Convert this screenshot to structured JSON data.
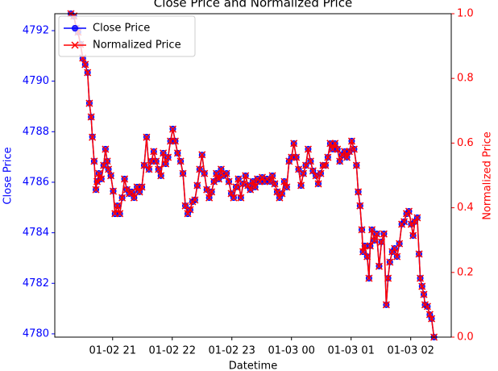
{
  "chart_data": {
    "type": "line",
    "title": "Close Price and Normalized Price",
    "x_label": "Datetime",
    "y_label": "Close Price",
    "y2_label": "Normalized Price",
    "xlim": [
      20.03,
      26.68
    ],
    "xticks": [
      {
        "value": 21,
        "label": "01-02 21"
      },
      {
        "value": 22,
        "label": "01-02 22"
      },
      {
        "value": 23,
        "label": "01-02 23"
      },
      {
        "value": 24,
        "label": "01-03 00"
      },
      {
        "value": 25,
        "label": "01-03 01"
      },
      {
        "value": 26,
        "label": "01-03 02"
      }
    ],
    "ylim": [
      4779.87,
      4792.67
    ],
    "yticks": [
      4780,
      4782,
      4784,
      4786,
      4788,
      4790,
      4792
    ],
    "y2lim": [
      0,
      1
    ],
    "y2ticks": [
      {
        "value": 0,
        "label": "0.0"
      },
      0.2,
      0.4,
      0.6,
      0.8,
      {
        "value": 1,
        "label": "1.0"
      }
    ],
    "legend": "upper left",
    "x": [
      20.3,
      20.35,
      20.39,
      20.42,
      20.46,
      20.5,
      20.54,
      20.58,
      20.61,
      20.64,
      20.66,
      20.69,
      20.72,
      20.74,
      20.77,
      20.81,
      20.85,
      20.88,
      20.91,
      20.93,
      20.97,
      21.01,
      21.04,
      21.08,
      21.12,
      21.16,
      21.2,
      21.24,
      21.28,
      21.32,
      21.36,
      21.41,
      21.45,
      21.49,
      21.53,
      21.57,
      21.61,
      21.65,
      21.69,
      21.73,
      21.77,
      21.81,
      21.85,
      21.89,
      21.93,
      21.97,
      22.01,
      22.05,
      22.09,
      22.14,
      22.18,
      22.22,
      22.26,
      22.3,
      22.34,
      22.38,
      22.42,
      22.46,
      22.5,
      22.54,
      22.58,
      22.62,
      22.66,
      22.7,
      22.74,
      22.78,
      22.82,
      22.86,
      22.91,
      22.95,
      22.99,
      23.03,
      23.07,
      23.11,
      23.15,
      23.19,
      23.23,
      23.27,
      23.31,
      23.35,
      23.39,
      23.43,
      23.47,
      23.51,
      23.55,
      23.59,
      23.64,
      23.68,
      23.72,
      23.76,
      23.8,
      23.84,
      23.88,
      23.92,
      23.96,
      24.0,
      24.04,
      24.08,
      24.12,
      24.16,
      24.2,
      24.24,
      24.28,
      24.32,
      24.36,
      24.41,
      24.45,
      24.49,
      24.53,
      24.57,
      24.61,
      24.65,
      24.69,
      24.73,
      24.77,
      24.81,
      24.85,
      24.89,
      24.93,
      24.97,
      25.01,
      25.05,
      25.09,
      25.12,
      25.15,
      25.18,
      25.2,
      25.23,
      25.27,
      25.3,
      25.32,
      25.35,
      25.39,
      25.43,
      25.47,
      25.51,
      25.55,
      25.59,
      25.62,
      25.65,
      25.69,
      25.73,
      25.77,
      25.81,
      25.85,
      25.89,
      25.93,
      25.97,
      26.01,
      26.04,
      26.07,
      26.11,
      26.14,
      26.16,
      26.19,
      26.22,
      26.24,
      26.28,
      26.32,
      26.35,
      26.39
    ],
    "series": [
      {
        "name": "Close Price",
        "color": "#0000ff",
        "marker": "o",
        "axis": "y",
        "values": [
          4792.67,
          4792.57,
          4792.1,
          4791.94,
          4791.46,
          4790.9,
          4790.66,
          4790.34,
          4789.13,
          4788.58,
          4787.8,
          4786.83,
          4785.71,
          4786.03,
          4786.35,
          4786.13,
          4786.67,
          4787.31,
          4786.83,
          4786.51,
          4786.26,
          4785.65,
          4784.75,
          4785.07,
          4784.75,
          4785.39,
          4786.13,
          4785.71,
          4785.55,
          4785.62,
          4785.39,
          4785.81,
          4785.62,
          4785.81,
          4786.67,
          4787.79,
          4786.51,
          4786.83,
          4787.21,
          4786.83,
          4786.51,
          4786.26,
          4787.15,
          4786.73,
          4786.99,
          4787.63,
          4788.11,
          4787.63,
          4787.15,
          4786.83,
          4786.35,
          4785.07,
          4784.75,
          4784.91,
          4785.23,
          4785.3,
          4785.87,
          4786.51,
          4787.08,
          4786.35,
          4785.71,
          4785.39,
          4785.62,
          4786.03,
          4786.35,
          4786.13,
          4786.51,
          4786.26,
          4786.35,
          4786.03,
          4785.55,
          4785.39,
          4785.81,
          4786.13,
          4785.39,
          4785.94,
          4786.26,
          4785.87,
          4785.71,
          4786.03,
          4785.81,
          4786.13,
          4786.03,
          4786.19,
          4786.03,
          4786.13,
          4786.03,
          4786.26,
          4785.94,
          4785.62,
          4785.39,
          4785.55,
          4786.03,
          4785.81,
          4786.83,
          4786.99,
          4787.53,
          4786.99,
          4786.51,
          4785.87,
          4786.35,
          4786.67,
          4787.31,
          4786.83,
          4786.45,
          4786.26,
          4785.94,
          4786.35,
          4786.67,
          4786.67,
          4786.99,
          4787.53,
          4787.31,
          4787.53,
          4787.31,
          4786.83,
          4787.08,
          4787.21,
          4786.99,
          4787.21,
          4787.63,
          4787.31,
          4786.67,
          4785.62,
          4785.07,
          4784.12,
          4783.25,
          4783.48,
          4783.06,
          4782.2,
          4783.48,
          4784.12,
          4783.7,
          4783.96,
          4782.68,
          4783.64,
          4783.96,
          4781.15,
          4782.2,
          4782.84,
          4783.25,
          4783.38,
          4783.06,
          4783.57,
          4784.34,
          4784.44,
          4784.75,
          4784.85,
          4784.34,
          4783.89,
          4784.44,
          4784.6,
          4783.16,
          4782.2,
          4781.88,
          4781.56,
          4781.15,
          4781.08,
          4780.76,
          4780.6,
          4779.87
        ]
      },
      {
        "name": "Normalized Price",
        "color": "#ff0000",
        "marker": "x",
        "axis": "y2",
        "values": [
          1.0,
          0.993,
          0.955,
          0.943,
          0.905,
          0.863,
          0.843,
          0.818,
          0.723,
          0.681,
          0.618,
          0.544,
          0.456,
          0.481,
          0.506,
          0.489,
          0.531,
          0.581,
          0.544,
          0.519,
          0.499,
          0.451,
          0.382,
          0.406,
          0.382,
          0.431,
          0.489,
          0.456,
          0.444,
          0.449,
          0.431,
          0.464,
          0.449,
          0.464,
          0.531,
          0.618,
          0.519,
          0.544,
          0.574,
          0.544,
          0.519,
          0.499,
          0.569,
          0.536,
          0.556,
          0.606,
          0.643,
          0.606,
          0.569,
          0.544,
          0.506,
          0.406,
          0.382,
          0.394,
          0.419,
          0.424,
          0.469,
          0.519,
          0.564,
          0.506,
          0.456,
          0.431,
          0.449,
          0.481,
          0.506,
          0.489,
          0.519,
          0.499,
          0.506,
          0.481,
          0.444,
          0.431,
          0.464,
          0.489,
          0.431,
          0.474,
          0.499,
          0.469,
          0.456,
          0.481,
          0.464,
          0.489,
          0.481,
          0.494,
          0.481,
          0.489,
          0.481,
          0.499,
          0.474,
          0.449,
          0.431,
          0.444,
          0.481,
          0.464,
          0.544,
          0.556,
          0.599,
          0.556,
          0.519,
          0.469,
          0.506,
          0.531,
          0.581,
          0.544,
          0.514,
          0.499,
          0.474,
          0.506,
          0.531,
          0.531,
          0.556,
          0.599,
          0.581,
          0.599,
          0.581,
          0.544,
          0.564,
          0.574,
          0.556,
          0.574,
          0.606,
          0.581,
          0.531,
          0.449,
          0.406,
          0.332,
          0.264,
          0.282,
          0.249,
          0.182,
          0.282,
          0.332,
          0.299,
          0.319,
          0.219,
          0.294,
          0.319,
          0.1,
          0.182,
          0.232,
          0.264,
          0.274,
          0.249,
          0.289,
          0.349,
          0.357,
          0.382,
          0.389,
          0.349,
          0.314,
          0.357,
          0.369,
          0.257,
          0.182,
          0.157,
          0.132,
          0.1,
          0.095,
          0.07,
          0.057,
          0.0
        ]
      }
    ]
  }
}
